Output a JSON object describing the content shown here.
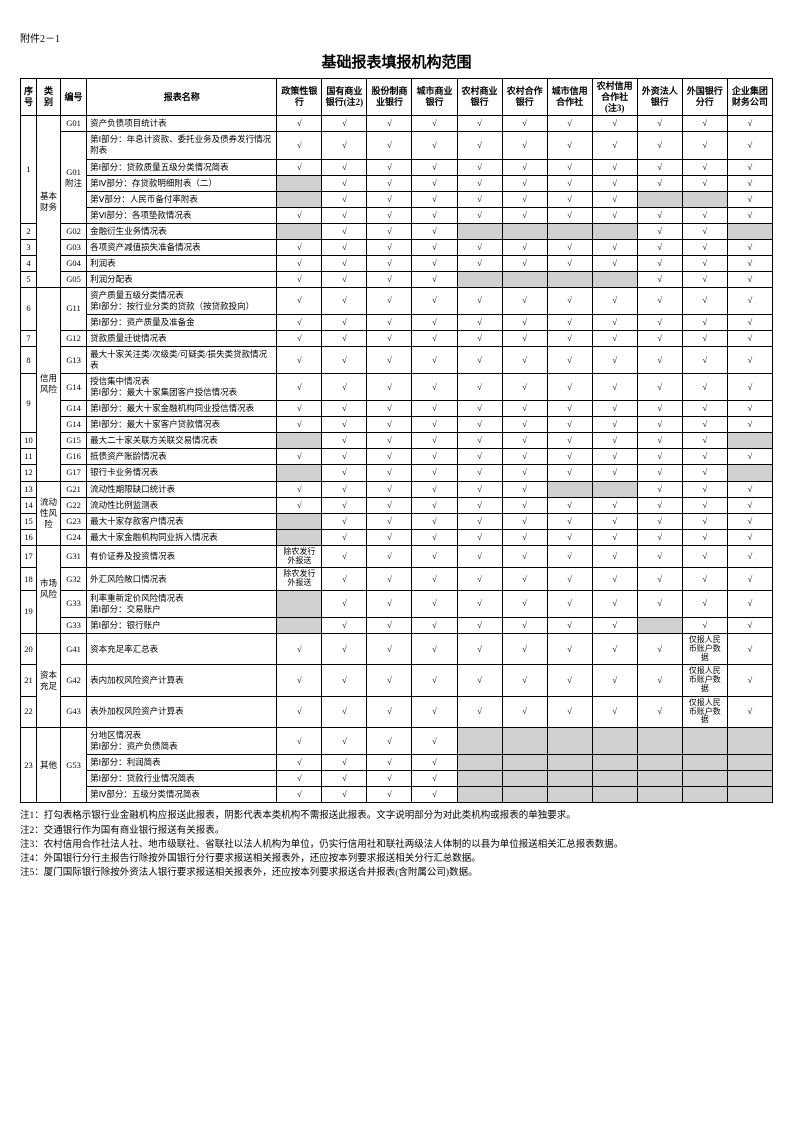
{
  "appendix": "附件2－1",
  "title": "基础报表填报机构范围",
  "headers": [
    "序号",
    "类别",
    "编号",
    "报表名称",
    "政策性银行",
    "国有商业银行(注2)",
    "股份制商业银行",
    "城市商业银行",
    "农村商业银行",
    "农村合作银行",
    "城市信用合作社",
    "农村信用合作社(注3)",
    "外资法人银行",
    "外国银行分行",
    "企业集团财务公司"
  ],
  "rows": [
    {
      "num": "1",
      "numrs": 6,
      "cat": "基本财务",
      "catrs": 10,
      "code": "G01",
      "coders": 1,
      "name": "资产负债项目统计表",
      "cells": [
        "c",
        "c",
        "c",
        "c",
        "c",
        "c",
        "c",
        "c",
        "c",
        "c",
        "c"
      ]
    },
    {
      "code": "G01\n附注",
      "coders": 5,
      "name": "第Ⅰ部分：年息计资款、委托业务及债券发行情况附表",
      "cells": [
        "c",
        "c",
        "c",
        "c",
        "c",
        "c",
        "c",
        "c",
        "c",
        "c",
        "c"
      ]
    },
    {
      "name": "第Ⅰ部分：贷款质量五级分类情况简表",
      "cells": [
        "c",
        "c",
        "c",
        "c",
        "c",
        "c",
        "c",
        "c",
        "c",
        "c",
        "c"
      ]
    },
    {
      "name": "第Ⅳ部分：存贷款明细附表（二）",
      "cells": [
        "s",
        "c",
        "c",
        "c",
        "c",
        "c",
        "c",
        "c",
        "c",
        "c",
        "c"
      ]
    },
    {
      "name": "第Ⅴ部分：人民币备付率附表",
      "cells": [
        "s",
        "c",
        "c",
        "c",
        "c",
        "c",
        "c",
        "c",
        "s",
        "s",
        "c"
      ]
    },
    {
      "name": "第Ⅵ部分：各项垫款情况表",
      "cells": [
        "c",
        "c",
        "c",
        "c",
        "c",
        "c",
        "c",
        "c",
        "c",
        "c",
        "c"
      ]
    },
    {
      "num": "2",
      "code": "G02",
      "name": "金融衍生业务情况表",
      "cells": [
        "s",
        "c",
        "c",
        "c",
        "s",
        "s",
        "s",
        "s",
        "c",
        "c",
        "s"
      ]
    },
    {
      "num": "3",
      "code": "G03",
      "name": "各项资产减值损失准备情况表",
      "cells": [
        "c",
        "c",
        "c",
        "c",
        "c",
        "c",
        "c",
        "c",
        "c",
        "c",
        "c"
      ]
    },
    {
      "num": "4",
      "code": "G04",
      "name": "利润表",
      "cells": [
        "c",
        "c",
        "c",
        "c",
        "c",
        "c",
        "c",
        "c",
        "c",
        "c",
        "c"
      ]
    },
    {
      "num": "5",
      "code": "G05",
      "name": "利润分配表",
      "cells": [
        "c",
        "c",
        "c",
        "c",
        "s",
        "s",
        "s",
        "s",
        "c",
        "c",
        "c"
      ]
    },
    {
      "num": "6",
      "numrs": 2,
      "cat": "信用风险",
      "catrs": 10,
      "code": "G11",
      "coders": 2,
      "name": "资产质量五级分类情况表\n第Ⅰ部分：按行业分类的贷款（按贷款投向）",
      "cells": [
        "c",
        "c",
        "c",
        "c",
        "c",
        "c",
        "c",
        "c",
        "c",
        "c",
        "c"
      ]
    },
    {
      "name": "第Ⅰ部分：资产质量及准备金",
      "cells": [
        "c",
        "c",
        "c",
        "c",
        "c",
        "c",
        "c",
        "c",
        "c",
        "c",
        "c"
      ]
    },
    {
      "num": "7",
      "code": "G12",
      "name": "贷款质量迁徙情况表",
      "cells": [
        "c",
        "c",
        "c",
        "c",
        "c",
        "c",
        "c",
        "c",
        "c",
        "c",
        "c"
      ]
    },
    {
      "num": "8",
      "code": "G13",
      "name": "最大十家关注类/次级类/可疑类/损失类贷款情况表",
      "cells": [
        "c",
        "c",
        "c",
        "c",
        "c",
        "c",
        "c",
        "c",
        "c",
        "c",
        "c"
      ]
    },
    {
      "num": "9",
      "numrs": 3,
      "code": "G14",
      "coders": 1,
      "name": "授信集中情况表\n第Ⅰ部分：最大十家集团客户授信情况表",
      "cells": [
        "c",
        "c",
        "c",
        "c",
        "c",
        "c",
        "c",
        "c",
        "c",
        "c",
        "c"
      ]
    },
    {
      "code": "G14",
      "name": "第Ⅰ部分：最大十家金融机构同业授信情况表",
      "cells": [
        "c",
        "c",
        "c",
        "c",
        "c",
        "c",
        "c",
        "c",
        "c",
        "c",
        "c"
      ]
    },
    {
      "code": "G14",
      "name": "第Ⅰ部分：最大十家客户贷款情况表",
      "cells": [
        "c",
        "c",
        "c",
        "c",
        "c",
        "c",
        "c",
        "c",
        "c",
        "c",
        "c"
      ]
    },
    {
      "num": "10",
      "code": "G15",
      "name": "最大二十家关联方关联交易情况表",
      "cells": [
        "s",
        "c",
        "c",
        "c",
        "c",
        "c",
        "c",
        "c",
        "c",
        "c",
        "s"
      ]
    },
    {
      "num": "11",
      "code": "G16",
      "name": "抵债资产账龄情况表",
      "cells": [
        "c",
        "c",
        "c",
        "c",
        "c",
        "c",
        "c",
        "c",
        "c",
        "c",
        "c"
      ]
    },
    {
      "num": "12",
      "code": "G17",
      "name": "银行卡业务情况表",
      "cells": [
        "s",
        "c",
        "c",
        "c",
        "c",
        "c",
        "c",
        "c",
        "c",
        "c",
        "s"
      ]
    },
    {
      "num": "13",
      "cat": "流动性风险",
      "catrs": 4,
      "code": "G21",
      "name": "流动性期限缺口统计表",
      "cells": [
        "c",
        "c",
        "c",
        "c",
        "c",
        "c",
        "s",
        "s",
        "c",
        "c",
        "c"
      ]
    },
    {
      "num": "14",
      "code": "G22",
      "name": "流动性比例监测表",
      "cells": [
        "c",
        "c",
        "c",
        "c",
        "c",
        "c",
        "c",
        "c",
        "c",
        "c",
        "c"
      ]
    },
    {
      "num": "15",
      "code": "G23",
      "name": "最大十家存款客户情况表",
      "cells": [
        "s",
        "c",
        "c",
        "c",
        "c",
        "c",
        "c",
        "c",
        "c",
        "c",
        "c"
      ]
    },
    {
      "num": "16",
      "code": "G24",
      "name": "最大十家金融机构同业拆入情况表",
      "cells": [
        "s",
        "c",
        "c",
        "c",
        "c",
        "c",
        "c",
        "c",
        "c",
        "c",
        "c"
      ]
    },
    {
      "num": "17",
      "cat": "市场风险",
      "catrs": 4,
      "code": "G31",
      "name": "有价证券及投资情况表",
      "cells": [
        {
          "t": "除农发行外报送"
        },
        "c",
        "c",
        "c",
        "c",
        "c",
        "c",
        "c",
        "c",
        "c",
        "c"
      ]
    },
    {
      "num": "18",
      "code": "G32",
      "name": "外汇风险敞口情况表",
      "cells": [
        {
          "t": "除农发行外报送"
        },
        "c",
        "c",
        "c",
        "c",
        "c",
        "c",
        "c",
        "c",
        "c",
        "c"
      ]
    },
    {
      "num": "19",
      "numrs": 2,
      "code": "G33",
      "coders": 1,
      "name": "利率重新定价风险情况表\n第Ⅰ部分：交易账户",
      "cells": [
        "s",
        "c",
        "c",
        "c",
        "c",
        "c",
        "c",
        "c",
        "c",
        "c",
        "c"
      ]
    },
    {
      "code": "G33",
      "name": "第Ⅰ部分：银行账户",
      "cells": [
        "s",
        "c",
        "c",
        "c",
        "c",
        "c",
        "c",
        "c",
        "s",
        "c",
        "c"
      ]
    },
    {
      "num": "20",
      "cat": "资本充足",
      "catrs": 3,
      "code": "G41",
      "name": "资本充足率汇总表",
      "cells": [
        "c",
        "c",
        "c",
        "c",
        "c",
        "c",
        "c",
        "c",
        "c",
        {
          "t": "仅报人民币账户数据"
        },
        "c"
      ]
    },
    {
      "num": "21",
      "code": "G42",
      "name": "表内加权风险资产计算表",
      "cells": [
        "c",
        "c",
        "c",
        "c",
        "c",
        "c",
        "c",
        "c",
        "c",
        {
          "t": "仅报人民币账户数据"
        },
        "c"
      ]
    },
    {
      "num": "22",
      "code": "G43",
      "name": "表外加权风险资产计算表",
      "cells": [
        "c",
        "c",
        "c",
        "c",
        "c",
        "c",
        "c",
        "c",
        "c",
        {
          "t": "仅报人民币账户数据"
        },
        "c"
      ]
    },
    {
      "num": "23",
      "numrs": 4,
      "cat": "其他",
      "catrs": 4,
      "code": "G53",
      "coders": 4,
      "name": "分地区情况表\n第Ⅰ部分：资产负债简表",
      "cells": [
        "c",
        "c",
        "c",
        "c",
        "s",
        "s",
        "s",
        "s",
        "s",
        "s",
        "s"
      ]
    },
    {
      "name": "第Ⅰ部分：利润简表",
      "cells": [
        "c",
        "c",
        "c",
        "c",
        "s",
        "s",
        "s",
        "s",
        "s",
        "s",
        "s"
      ]
    },
    {
      "name": "第Ⅰ部分：贷款行业情况简表",
      "cells": [
        "c",
        "c",
        "c",
        "c",
        "s",
        "s",
        "s",
        "s",
        "s",
        "s",
        "s"
      ]
    },
    {
      "name": "第Ⅳ部分：五级分类情况简表",
      "cells": [
        "c",
        "c",
        "c",
        "c",
        "s",
        "s",
        "s",
        "s",
        "s",
        "s",
        "s"
      ]
    }
  ],
  "notes": [
    "注1：打勾表格示银行业金融机构应报送此报表，阴影代表本类机构不需报送此报表。文字说明部分为对此类机构或报表的单独要求。",
    "注2：交通银行作为国有商业银行报送有关报表。",
    "注3：农村信用合作社法人社、地市级联社、省联社以法人机构为单位，仍实行信用社和联社两级法人体制的以县为单位报送相关汇总报表数据。",
    "注4：外国银行分行主报告行除按外国银行分行要求报送相关报表外，还应按本列要求报送相关分行汇总数据。",
    "注5：厦门国际银行除按外资法人银行要求报送相关报表外，还应按本列要求报送合并报表(含附属公司)数据。"
  ],
  "checkmark": "√"
}
